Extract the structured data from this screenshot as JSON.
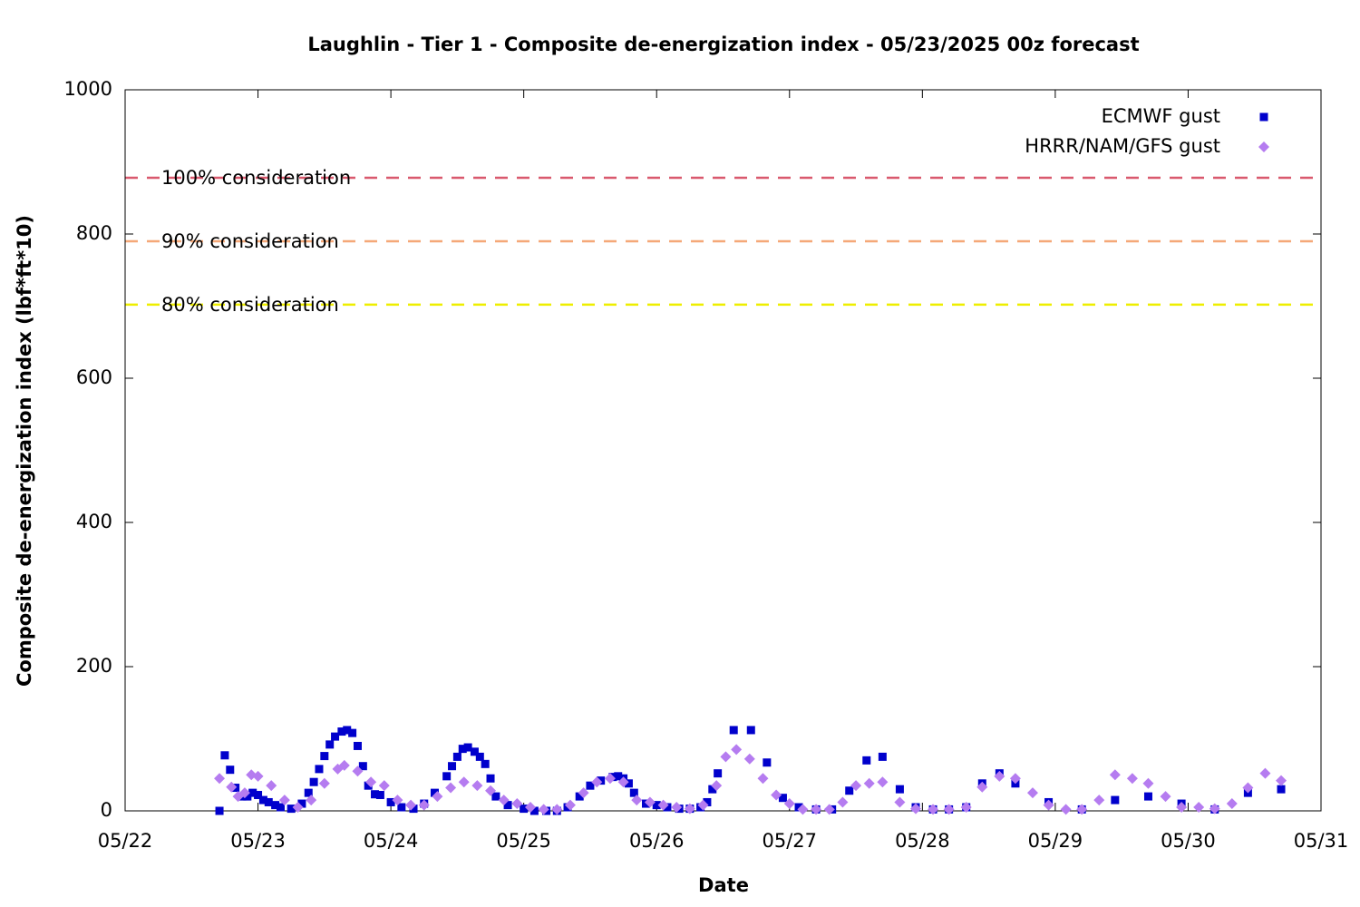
{
  "chart_data": {
    "type": "scatter",
    "title": "Laughlin - Tier 1 - Composite de-energization index - 05/23/2025 00z forecast",
    "x_label": "Date",
    "y_label": "Composite de-energization index (lbf*ft*10)",
    "xlim": [
      22,
      31
    ],
    "xticks": [
      {
        "value": 22,
        "label": "05/22"
      },
      {
        "value": 23,
        "label": "05/23"
      },
      {
        "value": 24,
        "label": "05/24"
      },
      {
        "value": 25,
        "label": "05/25"
      },
      {
        "value": 26,
        "label": "05/26"
      },
      {
        "value": 27,
        "label": "05/27"
      },
      {
        "value": 28,
        "label": "05/28"
      },
      {
        "value": 29,
        "label": "05/29"
      },
      {
        "value": 30,
        "label": "05/30"
      },
      {
        "value": 31,
        "label": "05/31"
      }
    ],
    "ylim": [
      0,
      1000
    ],
    "yticks": [
      0,
      200,
      400,
      600,
      800,
      1000
    ],
    "legend": "top-right",
    "thresholds": [
      {
        "label": "100% consideration",
        "value": 878,
        "color": "#d9596e"
      },
      {
        "label": "90% consideration",
        "value": 790,
        "color": "#f5a878"
      },
      {
        "label": "80% consideration",
        "value": 702,
        "color": "#eeee00"
      }
    ],
    "series": [
      {
        "name": "ECMWF gust",
        "color": "#0000cc",
        "marker": "square",
        "x": [
          22.71,
          22.75,
          22.79,
          22.83,
          22.88,
          22.92,
          22.96,
          23.0,
          23.04,
          23.08,
          23.13,
          23.17,
          23.25,
          23.33,
          23.38,
          23.42,
          23.46,
          23.5,
          23.54,
          23.58,
          23.63,
          23.67,
          23.71,
          23.75,
          23.79,
          23.83,
          23.88,
          23.92,
          24.0,
          24.08,
          24.17,
          24.25,
          24.33,
          24.42,
          24.46,
          24.5,
          24.54,
          24.58,
          24.63,
          24.67,
          24.71,
          24.75,
          24.79,
          24.88,
          25.0,
          25.08,
          25.17,
          25.25,
          25.33,
          25.42,
          25.5,
          25.58,
          25.67,
          25.71,
          25.75,
          25.79,
          25.83,
          25.92,
          26.0,
          26.08,
          26.17,
          26.25,
          26.33,
          26.38,
          26.42,
          26.46,
          26.58,
          26.71,
          26.83,
          26.95,
          27.07,
          27.2,
          27.32,
          27.45,
          27.58,
          27.7,
          27.83,
          27.95,
          28.08,
          28.2,
          28.33,
          28.45,
          28.58,
          28.7,
          28.95,
          29.2,
          29.45,
          29.7,
          29.95,
          30.2,
          30.45,
          30.7
        ],
        "values": [
          0,
          77,
          57,
          32,
          20,
          20,
          25,
          22,
          15,
          12,
          8,
          5,
          3,
          10,
          25,
          40,
          58,
          76,
          92,
          103,
          110,
          112,
          108,
          90,
          62,
          35,
          23,
          22,
          12,
          5,
          3,
          10,
          25,
          48,
          62,
          75,
          86,
          88,
          82,
          75,
          65,
          45,
          20,
          8,
          3,
          0,
          0,
          0,
          5,
          20,
          35,
          42,
          47,
          48,
          45,
          38,
          25,
          10,
          8,
          5,
          3,
          3,
          5,
          12,
          30,
          52,
          112,
          112,
          67,
          18,
          5,
          2,
          2,
          28,
          70,
          75,
          30,
          5,
          2,
          2,
          5,
          38,
          52,
          38,
          12,
          2,
          15,
          20,
          10,
          2,
          25,
          30
        ]
      },
      {
        "name": "HRRR/NAM/GFS gust",
        "color": "#b57cf0",
        "marker": "diamond",
        "x": [
          22.71,
          22.8,
          22.85,
          22.9,
          22.95,
          23.0,
          23.1,
          23.2,
          23.3,
          23.4,
          23.5,
          23.6,
          23.65,
          23.75,
          23.85,
          23.95,
          24.05,
          24.15,
          24.25,
          24.35,
          24.45,
          24.55,
          24.65,
          24.75,
          24.85,
          24.95,
          25.05,
          25.15,
          25.25,
          25.35,
          25.45,
          25.55,
          25.65,
          25.75,
          25.85,
          25.95,
          26.05,
          26.15,
          26.25,
          26.35,
          26.45,
          26.52,
          26.6,
          26.7,
          26.8,
          26.9,
          27.0,
          27.1,
          27.2,
          27.3,
          27.4,
          27.5,
          27.6,
          27.7,
          27.83,
          27.95,
          28.08,
          28.2,
          28.33,
          28.45,
          28.58,
          28.7,
          28.83,
          28.95,
          29.08,
          29.2,
          29.33,
          29.45,
          29.58,
          29.7,
          29.83,
          29.95,
          30.08,
          30.2,
          30.33,
          30.45,
          30.58,
          30.7
        ],
        "values": [
          45,
          33,
          20,
          25,
          50,
          48,
          35,
          15,
          5,
          15,
          38,
          58,
          63,
          55,
          40,
          35,
          15,
          8,
          8,
          20,
          32,
          40,
          35,
          28,
          15,
          10,
          5,
          2,
          2,
          8,
          25,
          40,
          45,
          40,
          15,
          12,
          8,
          5,
          3,
          8,
          35,
          75,
          85,
          72,
          45,
          22,
          10,
          2,
          2,
          2,
          12,
          35,
          38,
          40,
          12,
          3,
          2,
          2,
          5,
          33,
          48,
          45,
          25,
          8,
          2,
          2,
          15,
          50,
          45,
          38,
          20,
          5,
          5,
          3,
          10,
          32,
          52,
          42
        ]
      }
    ]
  }
}
